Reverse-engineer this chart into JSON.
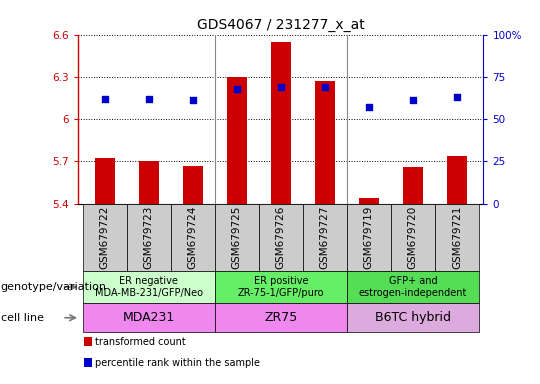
{
  "title": "GDS4067 / 231277_x_at",
  "samples": [
    "GSM679722",
    "GSM679723",
    "GSM679724",
    "GSM679725",
    "GSM679726",
    "GSM679727",
    "GSM679719",
    "GSM679720",
    "GSM679721"
  ],
  "transformed_count": [
    5.72,
    5.7,
    5.67,
    6.3,
    6.55,
    6.27,
    5.44,
    5.66,
    5.74
  ],
  "percentile_rank": [
    62,
    62,
    61,
    68,
    69,
    69,
    57,
    61,
    63
  ],
  "ylim": [
    5.4,
    6.6
  ],
  "yticks": [
    5.4,
    5.7,
    6.0,
    6.3,
    6.6
  ],
  "ytick_labels": [
    "5.4",
    "5.7",
    "6",
    "6.3",
    "6.6"
  ],
  "y2lim": [
    0,
    100
  ],
  "y2ticks": [
    0,
    25,
    50,
    75,
    100
  ],
  "y2tick_labels": [
    "0",
    "25",
    "50",
    "75",
    "100%"
  ],
  "bar_color": "#cc0000",
  "dot_color": "#0000cc",
  "bar_width": 0.45,
  "plot_bg": "#ffffff",
  "tick_fontsize": 7.5,
  "title_fontsize": 10,
  "group_fontsize": 7,
  "cellline_fontsize": 9,
  "label_fontsize": 8,
  "geno_group1_color": "#ccffcc",
  "geno_group2_color": "#66ee66",
  "geno_group3_color": "#55dd55",
  "cell_color1": "#ee88ee",
  "cell_color2": "#ee88ee",
  "cell_color3": "#ddaadd",
  "xtick_bg": "#cccccc",
  "legend_red": "transformed count",
  "legend_blue": "percentile rank within the sample"
}
